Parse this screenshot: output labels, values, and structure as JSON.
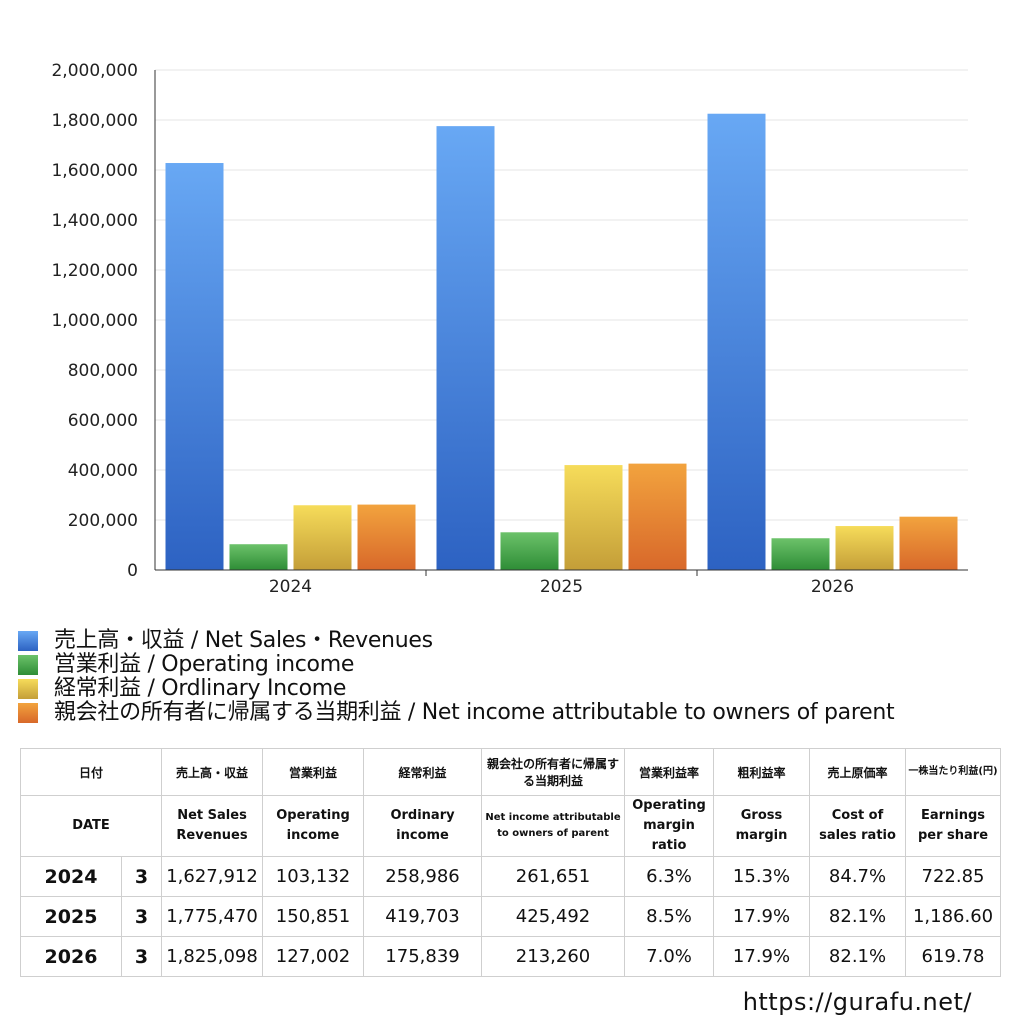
{
  "chart_data": {
    "type": "bar",
    "categories": [
      "2024",
      "2025",
      "2026"
    ],
    "series": [
      {
        "name": "売上高・収益 / Net Sales・Revenues",
        "values": [
          1627912,
          1775470,
          1825098
        ]
      },
      {
        "name": "営業利益 / Operating income",
        "values": [
          103132,
          150851,
          127002
        ]
      },
      {
        "name": "経常利益 / Ordlinary Income",
        "values": [
          258986,
          419703,
          175839
        ]
      },
      {
        "name": "親会社の所有者に帰属する当期利益 / Net income attributable to owners of parent",
        "values": [
          261651,
          425492,
          213260
        ]
      }
    ],
    "ylim": [
      0,
      2000000
    ],
    "yticks": [
      0,
      200000,
      400000,
      600000,
      800000,
      1000000,
      1200000,
      1400000,
      1600000,
      1800000,
      2000000
    ],
    "ytick_labels": [
      "0",
      "200,000",
      "400,000",
      "600,000",
      "800,000",
      "1,000,000",
      "1,200,000",
      "1,400,000",
      "1,600,000",
      "1,800,000",
      "2,000,000"
    ],
    "grid": true,
    "legend_position": "bottom",
    "colors": [
      {
        "top": "#68a8f4",
        "bottom": "#2d62c2"
      },
      {
        "top": "#6cc26a",
        "bottom": "#2e8d36"
      },
      {
        "top": "#f6dc5a",
        "bottom": "#c49e38"
      },
      {
        "top": "#f2a33e",
        "bottom": "#d8682a"
      }
    ]
  },
  "table": {
    "header1": [
      "日付",
      "売上高・収益",
      "営業利益",
      "経常利益",
      "親会社の所有者に帰属する当期利益",
      "営業利益率",
      "粗利益率",
      "売上原価率",
      "一株当たり利益(円)"
    ],
    "header2": [
      "DATE",
      "Net Sales Revenues",
      "Operating income",
      "Ordinary income",
      "Net income attributable to owners of parent",
      "Operating margin ratio",
      "Gross margin",
      "Cost of sales ratio",
      "Earnings per share"
    ],
    "rows": [
      {
        "year": "2024",
        "month": "3",
        "sales": "1,627,912",
        "op": "103,132",
        "ord": "258,986",
        "net": "261,651",
        "opm": "6.3%",
        "gm": "15.3%",
        "cos": "84.7%",
        "eps": "722.85"
      },
      {
        "year": "2025",
        "month": "3",
        "sales": "1,775,470",
        "op": "150,851",
        "ord": "419,703",
        "net": "425,492",
        "opm": "8.5%",
        "gm": "17.9%",
        "cos": "82.1%",
        "eps": "1,186.60"
      },
      {
        "year": "2026",
        "month": "3",
        "sales": "1,825,098",
        "op": "127,002",
        "ord": "175,839",
        "net": "213,260",
        "opm": "7.0%",
        "gm": "17.9%",
        "cos": "82.1%",
        "eps": "619.78"
      }
    ]
  },
  "footer": {
    "url": "https://gurafu.net/"
  }
}
